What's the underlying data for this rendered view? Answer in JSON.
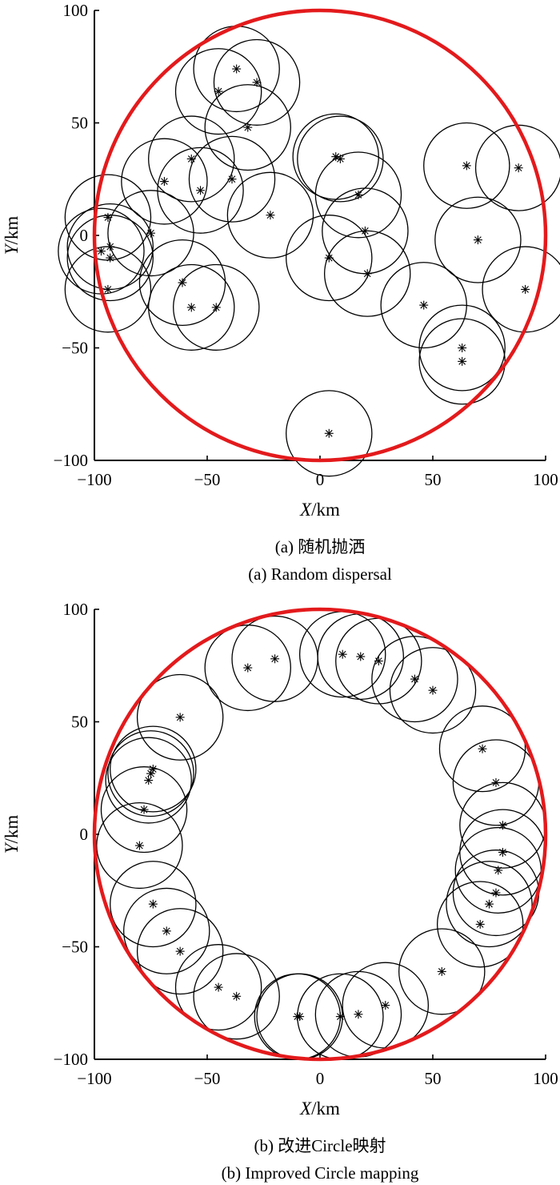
{
  "chart_data": [
    {
      "type": "scatter",
      "subplot": "a",
      "caption_cn": "(a) 随机抛洒",
      "caption_en": "(a) Random dispersal",
      "xlabel_var": "X",
      "xlabel_unit": "/km",
      "ylabel_var": "Y",
      "ylabel_unit": "/km",
      "xlim": [
        -100,
        100
      ],
      "ylim": [
        -100,
        100
      ],
      "xticks": [
        -100,
        -50,
        0,
        50,
        100
      ],
      "yticks": [
        -100,
        -50,
        0,
        50,
        100
      ],
      "xtick_labels": [
        "−100",
        "−50",
        "0",
        "50",
        "100"
      ],
      "ytick_labels": [
        "−100",
        "−50",
        "0",
        "50",
        "100"
      ],
      "boundary_radius": 100,
      "boundary_color": "#e31a1c",
      "coverage_radius": 19,
      "grid": false,
      "points": [
        [
          -45,
          64
        ],
        [
          -37,
          74
        ],
        [
          -28,
          68
        ],
        [
          -32,
          48
        ],
        [
          -69,
          24
        ],
        [
          -57,
          34
        ],
        [
          -53,
          20
        ],
        [
          -39,
          25
        ],
        [
          -22,
          9
        ],
        [
          -94,
          8
        ],
        [
          -75,
          1
        ],
        [
          -97,
          -7
        ],
        [
          -93,
          -5
        ],
        [
          -94,
          -24
        ],
        [
          -93,
          -10
        ],
        [
          -61,
          -21
        ],
        [
          -57,
          -32
        ],
        [
          -46,
          -32
        ],
        [
          7,
          35
        ],
        [
          9,
          34
        ],
        [
          17,
          18
        ],
        [
          20,
          2
        ],
        [
          4,
          -10
        ],
        [
          21,
          -17
        ],
        [
          46,
          -31
        ],
        [
          63,
          -50
        ],
        [
          63,
          -56
        ],
        [
          65,
          31
        ],
        [
          88,
          30
        ],
        [
          70,
          -2
        ],
        [
          91,
          -24
        ],
        [
          4,
          -88
        ]
      ]
    },
    {
      "type": "scatter",
      "subplot": "b",
      "caption_cn": "(b) 改进Circle映射",
      "caption_en": "(b) Improved Circle mapping",
      "xlabel_var": "X",
      "xlabel_unit": "/km",
      "ylabel_var": "Y",
      "ylabel_unit": "/km",
      "xlim": [
        -100,
        100
      ],
      "ylim": [
        -100,
        100
      ],
      "xticks": [
        -100,
        -50,
        0,
        50,
        100
      ],
      "yticks": [
        -100,
        -50,
        0,
        50,
        100
      ],
      "xtick_labels": [
        "−100",
        "−50",
        "0",
        "50",
        "100"
      ],
      "ytick_labels": [
        "−100",
        "−50",
        "0",
        "50",
        "100"
      ],
      "boundary_radius": 100,
      "boundary_color": "#e31a1c",
      "coverage_radius": 19,
      "grid": false,
      "points": [
        [
          -32,
          74
        ],
        [
          -20,
          78
        ],
        [
          10,
          80
        ],
        [
          18,
          79
        ],
        [
          26,
          77
        ],
        [
          42,
          69
        ],
        [
          50,
          64
        ],
        [
          -62,
          52
        ],
        [
          -74,
          29
        ],
        [
          -75,
          27
        ],
        [
          -76,
          24
        ],
        [
          -78,
          11
        ],
        [
          -80,
          -5
        ],
        [
          -74,
          -31
        ],
        [
          -68,
          -43
        ],
        [
          -62,
          -52
        ],
        [
          -45,
          -68
        ],
        [
          -37,
          -72
        ],
        [
          -10,
          -81
        ],
        [
          -9,
          -81
        ],
        [
          9,
          -81
        ],
        [
          17,
          -80
        ],
        [
          29,
          -76
        ],
        [
          54,
          -61
        ],
        [
          72,
          38
        ],
        [
          78,
          23
        ],
        [
          81,
          4
        ],
        [
          81,
          -8
        ],
        [
          79,
          -16
        ],
        [
          78,
          -26
        ],
        [
          75,
          -31
        ],
        [
          71,
          -40
        ]
      ]
    }
  ]
}
